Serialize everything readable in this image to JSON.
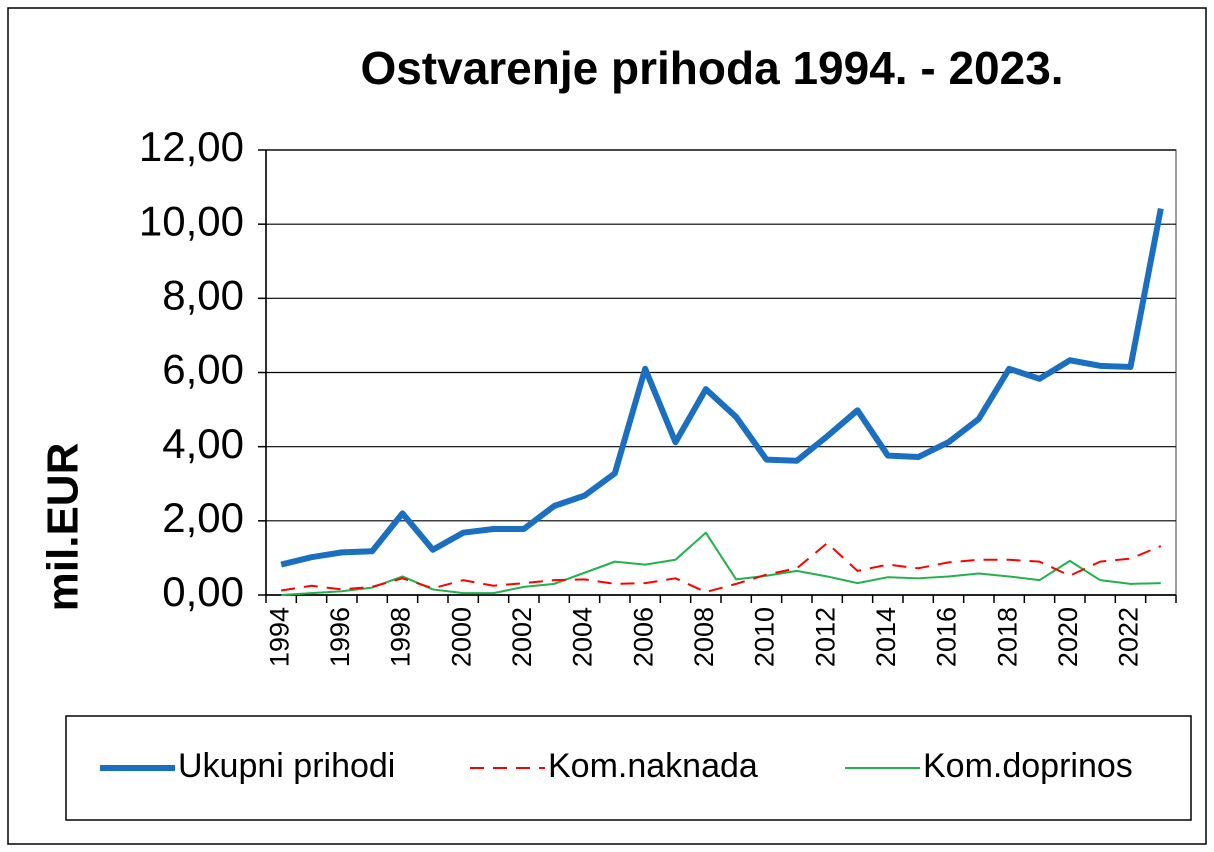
{
  "chart_data": {
    "type": "line",
    "title": "Ostvarenje prihoda 1994. - 2023.",
    "y_label": "mil.EUR",
    "categories": [
      "1994",
      null,
      "1996",
      null,
      "1998",
      null,
      "2000",
      null,
      "2002",
      null,
      "2004",
      null,
      "2006",
      null,
      "2008",
      null,
      "2010",
      null,
      "2012",
      null,
      "2014",
      null,
      "2016",
      null,
      "2018",
      null,
      "2020",
      null,
      "2022",
      null
    ],
    "series": [
      {
        "name": "Ukupni prihodi",
        "color": "#1b6fc0",
        "line_style": "solid",
        "linewidth": 6,
        "values": [
          0.82,
          1.02,
          1.15,
          1.18,
          2.2,
          1.22,
          1.68,
          1.78,
          1.78,
          2.4,
          2.68,
          3.28,
          6.1,
          4.12,
          5.55,
          4.8,
          3.65,
          3.62,
          4.28,
          4.98,
          3.76,
          3.72,
          4.12,
          4.75,
          6.1,
          5.83,
          6.33,
          6.18,
          6.15,
          10.42
        ]
      },
      {
        "name": "Kom.naknada",
        "color": "#ff0000",
        "line_style": "dashed",
        "linewidth": 2,
        "values": [
          0.12,
          0.25,
          0.15,
          0.22,
          0.45,
          0.18,
          0.4,
          0.25,
          0.32,
          0.4,
          0.42,
          0.3,
          0.32,
          0.45,
          0.08,
          0.3,
          0.55,
          0.72,
          1.4,
          0.65,
          0.82,
          0.72,
          0.88,
          0.95,
          0.95,
          0.9,
          0.52,
          0.9,
          0.98,
          1.32
        ]
      },
      {
        "name": "Kom.doprinos",
        "color": "#22b14c",
        "line_style": "solid",
        "linewidth": 2,
        "values": [
          0.0,
          0.05,
          0.1,
          0.2,
          0.5,
          0.15,
          0.05,
          0.05,
          0.22,
          0.3,
          0.6,
          0.9,
          0.82,
          0.95,
          1.68,
          0.42,
          0.52,
          0.65,
          0.5,
          0.32,
          0.48,
          0.45,
          0.5,
          0.58,
          0.5,
          0.4,
          0.92,
          0.4,
          0.3,
          0.32
        ]
      }
    ],
    "ylim": [
      0,
      12
    ],
    "yticks": [
      {
        "value": 0,
        "label": "0,00"
      },
      {
        "value": 2,
        "label": "2,00"
      },
      {
        "value": 4,
        "label": "4,00"
      },
      {
        "value": 6,
        "label": "6,00"
      },
      {
        "value": 8,
        "label": "8,00"
      },
      {
        "value": 10,
        "label": "10,00"
      },
      {
        "value": 12,
        "label": "12,00"
      }
    ],
    "grid": true,
    "legend": "bottom"
  }
}
